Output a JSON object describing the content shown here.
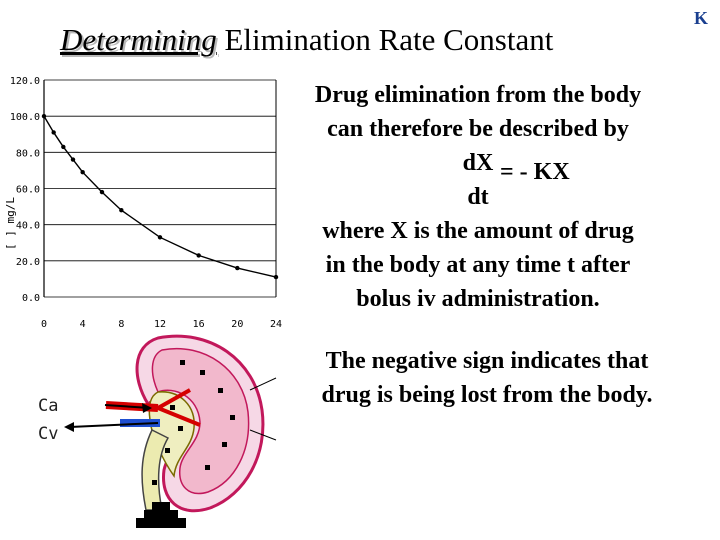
{
  "slide": {
    "title_italic": "Determining",
    "title_rest": "Elimination Rate Constant",
    "corner_mark": "K",
    "lines": [
      "Drug elimination from the body",
      "can therefore be described by"
    ],
    "fraction": {
      "numerator": "dX",
      "denominator": "dt",
      "equals": "= - KX"
    },
    "where_lines": [
      "where X is the amount of drug",
      "in the body at any time t after",
      "bolus iv administration."
    ],
    "note_lines": [
      "The negative sign indicates that",
      "drug is being lost from the body."
    ],
    "labels": {
      "artery": "Ca",
      "vein": "Cv"
    }
  },
  "chart_data": {
    "type": "line",
    "title": "",
    "xlabel": "",
    "ylabel": "[ ] mg/L",
    "x_ticks": [
      "0",
      "4",
      "8",
      "12",
      "16",
      "20",
      "24"
    ],
    "y_ticks": [
      "0.0",
      "20.0",
      "40.0",
      "60.0",
      "80.0",
      "100.0",
      "120.0"
    ],
    "xlim": [
      0,
      24
    ],
    "ylim": [
      0,
      120
    ],
    "grid": "horizontal",
    "series": [
      {
        "x": [
          0,
          1,
          2,
          3,
          4,
          6,
          8,
          12,
          16,
          20,
          24
        ],
        "values": [
          100,
          91,
          83,
          76,
          69,
          58,
          48,
          33,
          23,
          16,
          11
        ]
      }
    ]
  },
  "colors": {
    "curve": "#000000",
    "title_shadow": "#b8b8b8",
    "corner_mark": "#1a3f8f",
    "kidney_outline": "#c2185b",
    "kidney_fill": "#f6d8e6",
    "artery": "#d50000",
    "vein": "#1f4fd1",
    "ureter": "#ecebb0"
  }
}
